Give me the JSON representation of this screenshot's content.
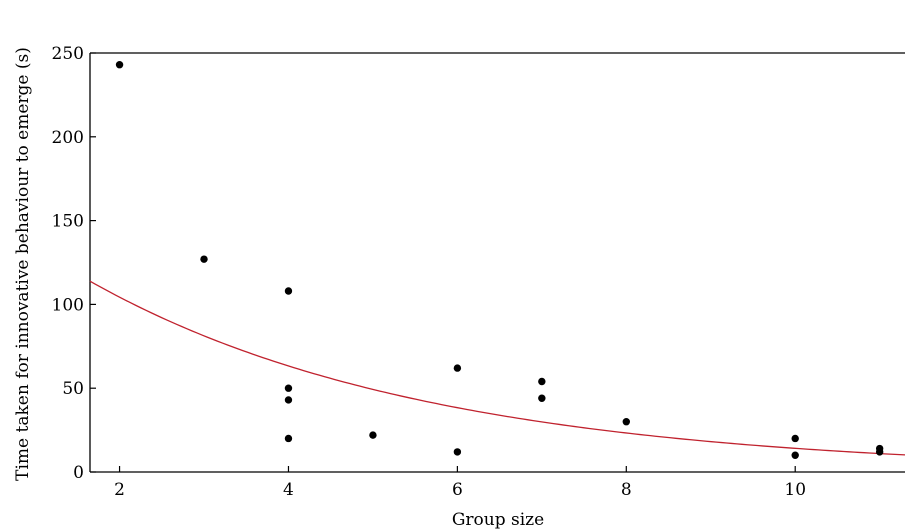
{
  "chart_data": {
    "type": "scatter",
    "title": "",
    "xlabel": "Group size",
    "ylabel": "Time taken for innovative behaviour to emerge (s)",
    "xlim": [
      1.65,
      11.3
    ],
    "ylim": [
      0,
      250
    ],
    "xticks": [
      2,
      4,
      6,
      8,
      10
    ],
    "yticks": [
      0,
      50,
      100,
      150,
      200,
      250
    ],
    "grid": false,
    "legend": "none",
    "series": [
      {
        "x": [
          2,
          3,
          4,
          4,
          4,
          4,
          5,
          6,
          6,
          7,
          7,
          8,
          10,
          10,
          11,
          11
        ],
        "y": [
          243,
          127,
          108,
          50,
          43,
          20,
          22,
          62,
          12,
          54,
          44,
          30,
          20,
          10,
          14,
          12
        ]
      }
    ],
    "fit_curve": {
      "type": "exponential",
      "a": 172,
      "b": -0.25,
      "color": "#c0222e"
    },
    "colors": {
      "points": "#000000",
      "axes": "#000000"
    }
  }
}
